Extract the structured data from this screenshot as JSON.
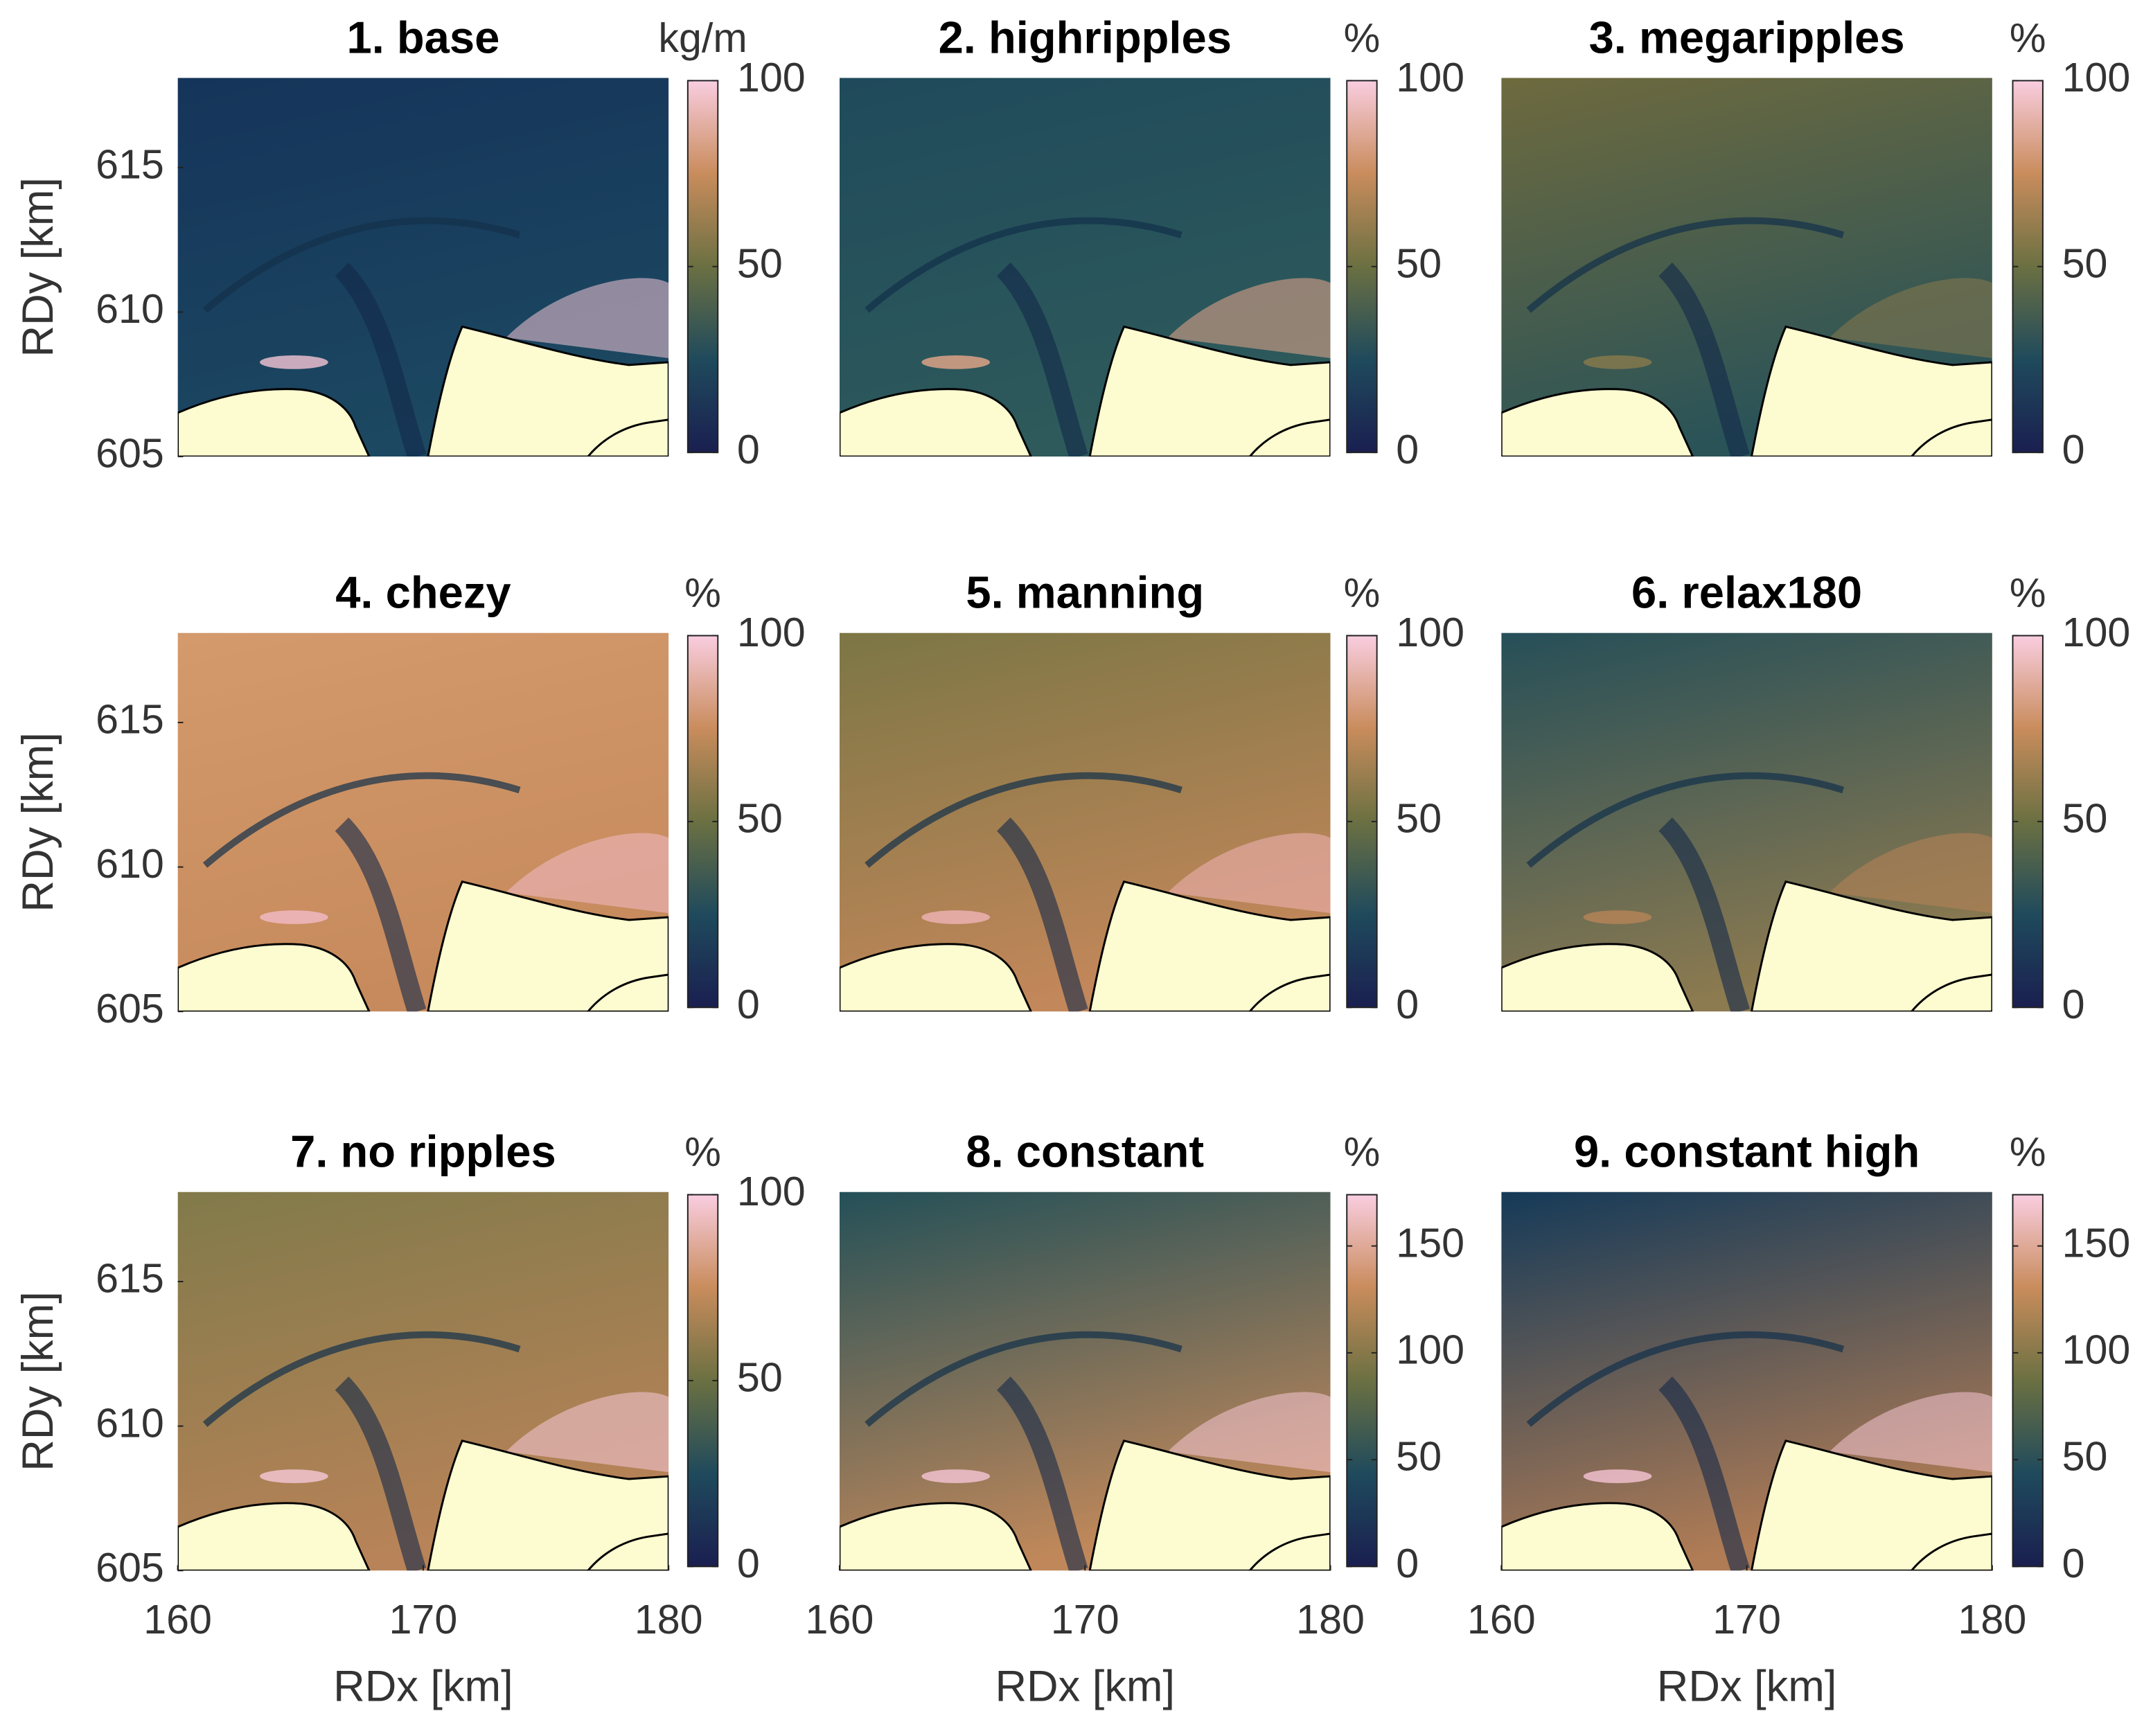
{
  "chart_data": [
    {
      "type": "heatmap",
      "title": "1. base",
      "clabel": "kg/m",
      "clim": [
        0,
        100
      ],
      "cticks": [
        0,
        50,
        100
      ],
      "colormap": [
        "#1a1f50",
        "#1f4a5c",
        "#6b7042",
        "#c98c5c",
        "#f9cde0"
      ],
      "ylim": [
        605,
        618.1
      ],
      "yticks": [
        605,
        610,
        615
      ],
      "ylabel": "RDy [km]"
    },
    {
      "type": "heatmap",
      "title": "2. highripples",
      "clabel": "%",
      "clim": [
        0,
        100
      ],
      "cticks": [
        0,
        50,
        100
      ],
      "colormap": [
        "#1a1f50",
        "#1f4a5c",
        "#6b7042",
        "#c98c5c",
        "#f9cde0"
      ]
    },
    {
      "type": "heatmap",
      "title": "3. megaripples",
      "clabel": "%",
      "clim": [
        0,
        100
      ],
      "cticks": [
        0,
        50,
        100
      ],
      "colormap": [
        "#1a1f50",
        "#1f4a5c",
        "#6b7042",
        "#c98c5c",
        "#f9cde0"
      ]
    },
    {
      "type": "heatmap",
      "title": "4. chezy",
      "clabel": "%",
      "clim": [
        0,
        100
      ],
      "cticks": [
        0,
        50,
        100
      ],
      "colormap": [
        "#1a1f50",
        "#1f4a5c",
        "#6b7042",
        "#c98c5c",
        "#f9cde0"
      ],
      "ylim": [
        605,
        618.1
      ],
      "yticks": [
        605,
        610,
        615
      ],
      "ylabel": "RDy [km]"
    },
    {
      "type": "heatmap",
      "title": "5. manning",
      "clabel": "%",
      "clim": [
        0,
        100
      ],
      "cticks": [
        0,
        50,
        100
      ],
      "colormap": [
        "#1a1f50",
        "#1f4a5c",
        "#6b7042",
        "#c98c5c",
        "#f9cde0"
      ]
    },
    {
      "type": "heatmap",
      "title": "6. relax180",
      "clabel": "%",
      "clim": [
        0,
        100
      ],
      "cticks": [
        0,
        50,
        100
      ],
      "colormap": [
        "#1a1f50",
        "#1f4a5c",
        "#6b7042",
        "#c98c5c",
        "#f9cde0"
      ]
    },
    {
      "type": "heatmap",
      "title": "7. no ripples",
      "clabel": "%",
      "clim": [
        0,
        100
      ],
      "cticks": [
        0,
        50,
        100
      ],
      "colormap": [
        "#1a1f50",
        "#1f4a5c",
        "#6b7042",
        "#c98c5c",
        "#f9cde0"
      ],
      "ylim": [
        605,
        618.1
      ],
      "yticks": [
        605,
        610,
        615
      ],
      "ylabel": "RDy [km]",
      "xlim": [
        160,
        180
      ],
      "xticks": [
        160,
        170,
        180
      ],
      "xlabel": "RDx [km]"
    },
    {
      "type": "heatmap",
      "title": "8. constant",
      "clabel": "%",
      "clim": [
        0,
        174
      ],
      "cticks": [
        0,
        50,
        100,
        150
      ],
      "colormap": [
        "#1a1f50",
        "#1f4a5c",
        "#6b7042",
        "#c98c5c",
        "#f9cde0"
      ],
      "xlim": [
        160,
        180
      ],
      "xticks": [
        160,
        170,
        180
      ],
      "xlabel": "RDx [km]"
    },
    {
      "type": "heatmap",
      "title": "9. constant high",
      "clabel": "%",
      "clim": [
        0,
        174
      ],
      "cticks": [
        0,
        50,
        100,
        150
      ],
      "colormap": [
        "#1a1f50",
        "#1f4a5c",
        "#6b7042",
        "#c98c5c",
        "#f9cde0"
      ],
      "xlim": [
        160,
        180
      ],
      "xticks": [
        160,
        170,
        180
      ],
      "xlabel": "RDx [km]"
    }
  ]
}
